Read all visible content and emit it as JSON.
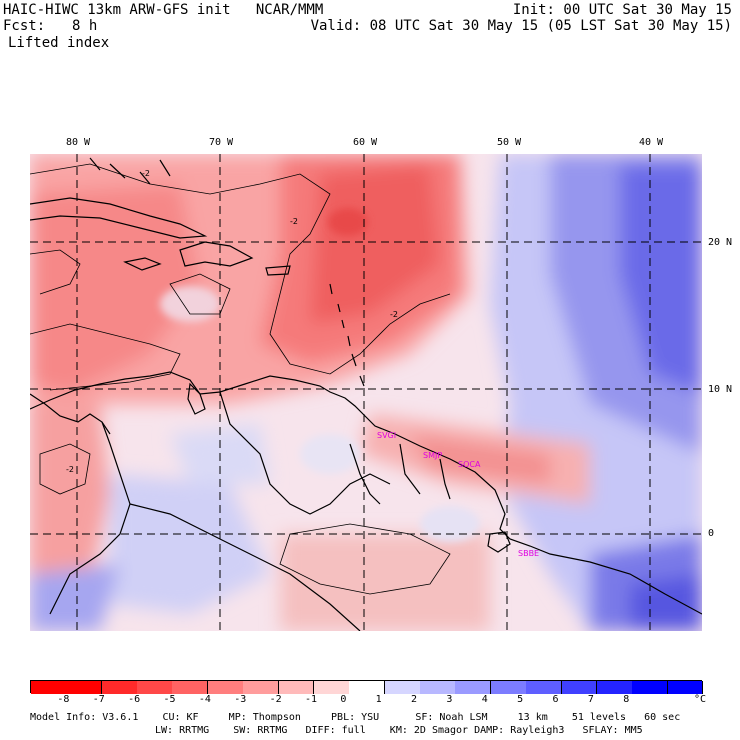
{
  "header": {
    "title_left": "HAIC-HIWC 13km ARW-GFS init   NCAR/MMM",
    "init": "Init: 00 UTC Sat 30 May 15",
    "fcst_label": "Fcst:",
    "fcst_value": "8 h",
    "valid": "Valid: 08 UTC Sat 30 May 15 (05 LST Sat 30 May 15)",
    "field": "Lifted index"
  },
  "map": {
    "lon_labels": [
      "80 W",
      "70 W",
      "60 W",
      "50 W",
      "40 W"
    ],
    "lat_labels": [
      "20 N",
      "10 N",
      "0"
    ],
    "contour_labels": [
      "-2",
      "-2",
      "-2",
      "-2"
    ],
    "stations": [
      "SVGI",
      "SMJP",
      "SOCA",
      "SBBE"
    ]
  },
  "colorbar": {
    "tick_labels": [
      "-8",
      "-7",
      "-6",
      "-5",
      "-4",
      "-3",
      "-2",
      "-1",
      "0",
      "1",
      "2",
      "3",
      "4",
      "5",
      "6",
      "7",
      "8"
    ],
    "unit": "°C",
    "colors": [
      "#ff0000",
      "#ff2a2a",
      "#ff4848",
      "#ff6363",
      "#ff7e7e",
      "#ff9c9c",
      "#ffbaba",
      "#ffd6d6",
      "#ffffff",
      "#d6d6ff",
      "#b8b8ff",
      "#9a9aff",
      "#7c7cff",
      "#5e5eff",
      "#4040ff",
      "#2424ff",
      "#0000ff"
    ]
  },
  "footer": {
    "line1": "Model Info: V3.6.1    CU: KF     MP: Thompson     PBL: YSU      SF: Noah LSM     13 km    51 levels   60 sec",
    "line2": "LW: RRTMG    SW: RRTMG   DIFF: full    KM: 2D Smagor DAMP: Rayleigh3   SFLAY: MM5"
  }
}
